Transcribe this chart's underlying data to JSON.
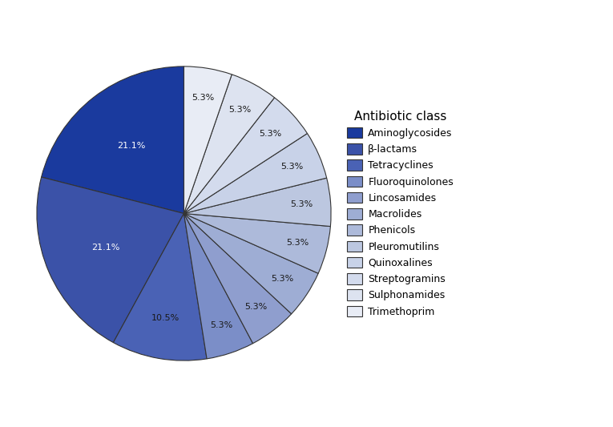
{
  "labels": [
    "Aminoglycosides",
    "β-lactams",
    "Tetracyclines",
    "Fluoroquinolones",
    "Lincosamides",
    "Macrolides",
    "Phenicols",
    "Pleuromutilins",
    "Quinoxalines",
    "Streptogramins",
    "Sulphonamides",
    "Trimethoprim"
  ],
  "values": [
    21.1,
    21.1,
    10.5,
    5.3,
    5.3,
    5.3,
    5.3,
    5.3,
    5.3,
    5.3,
    5.3,
    5.3
  ],
  "colors": [
    "#1a3a9e",
    "#3b52a8",
    "#4a62b5",
    "#7b8ec8",
    "#8f9ece",
    "#9eadd4",
    "#adbada",
    "#bcc7e0",
    "#c8d2e8",
    "#d3dbed",
    "#dde3f0",
    "#e8ecf5"
  ],
  "autopct_labels": [
    "21.1%",
    "21.1%",
    "10.5%",
    "5.3%",
    "5.3%",
    "5.3%",
    "5.3%",
    "5.3%",
    "5.3%",
    "5.3%",
    "5.3%",
    "5.3%"
  ],
  "legend_title": "Antibiotic class",
  "startangle": 90,
  "background_color": "#ffffff"
}
